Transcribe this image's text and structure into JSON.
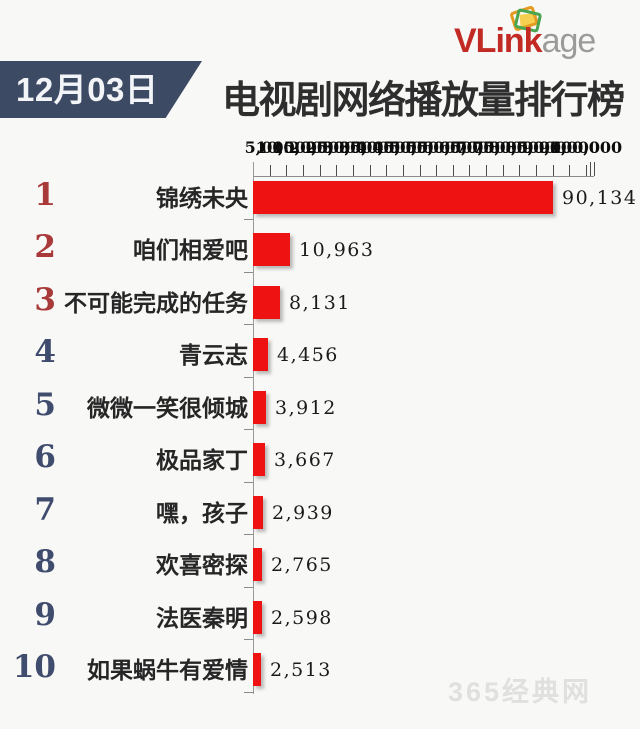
{
  "logo": {
    "brand_bold": "VLink",
    "brand_light": "age",
    "brand_color": "#c22a24",
    "secondary_color": "#9b9b9b",
    "icon": "stacked-photo-frames-icon",
    "icon_colors": [
      "#e59a20",
      "#49a54f",
      "#f4c832"
    ]
  },
  "header": {
    "date_badge": "12月03日",
    "title": "电视剧网络播放量排行榜",
    "badge_bg": "#3c4a63"
  },
  "watermark": {
    "text": "365经典网"
  },
  "chart_data": {
    "type": "bar",
    "orientation": "horizontal",
    "title": "电视剧网络播放量排行榜",
    "date": "12月03日",
    "categories": [
      "锦绣未央",
      "咱们相爱吧",
      "不可能完成的任务",
      "青云志",
      "微微一笑很倾城",
      "极品家丁",
      "嘿，孩子",
      "欢喜密探",
      "法医秦明",
      "如果蜗牛有爱情"
    ],
    "ranks": [
      "1",
      "2",
      "3",
      "4",
      "5",
      "6",
      "7",
      "8",
      "9",
      "10"
    ],
    "values": [
      90134,
      10963,
      8131,
      4456,
      3912,
      3667,
      2939,
      2765,
      2598,
      2513
    ],
    "value_labels": [
      "90,134",
      "10,963",
      "8,131",
      "4,456",
      "3,912",
      "3,667",
      "2,939",
      "2,765",
      "2,598",
      "2,513"
    ],
    "xlim": [
      0,
      100000
    ],
    "x_tick_values": [
      5000,
      10000,
      15000,
      20000,
      25000,
      30000,
      35000,
      40000,
      45000,
      50000,
      55000,
      60000,
      65000,
      70000,
      75000,
      80000,
      85000,
      90000,
      95000,
      100000
    ],
    "x_tick_labels": [
      "5,000",
      "10,000",
      "15,000",
      "20,000",
      "25,000",
      "30,000",
      "35,000",
      "40,000",
      "45,000",
      "50,000",
      "55,000",
      "60,000",
      "65,000",
      "70,000",
      "75,000",
      "80,000",
      "85,000",
      "90,000",
      "95,000",
      "100,000"
    ],
    "grid": false,
    "legend": "none",
    "bar_color": "#ee1212",
    "rank_color_top3": "#a83a3a",
    "rank_color_rest": "#3f4c6d"
  }
}
